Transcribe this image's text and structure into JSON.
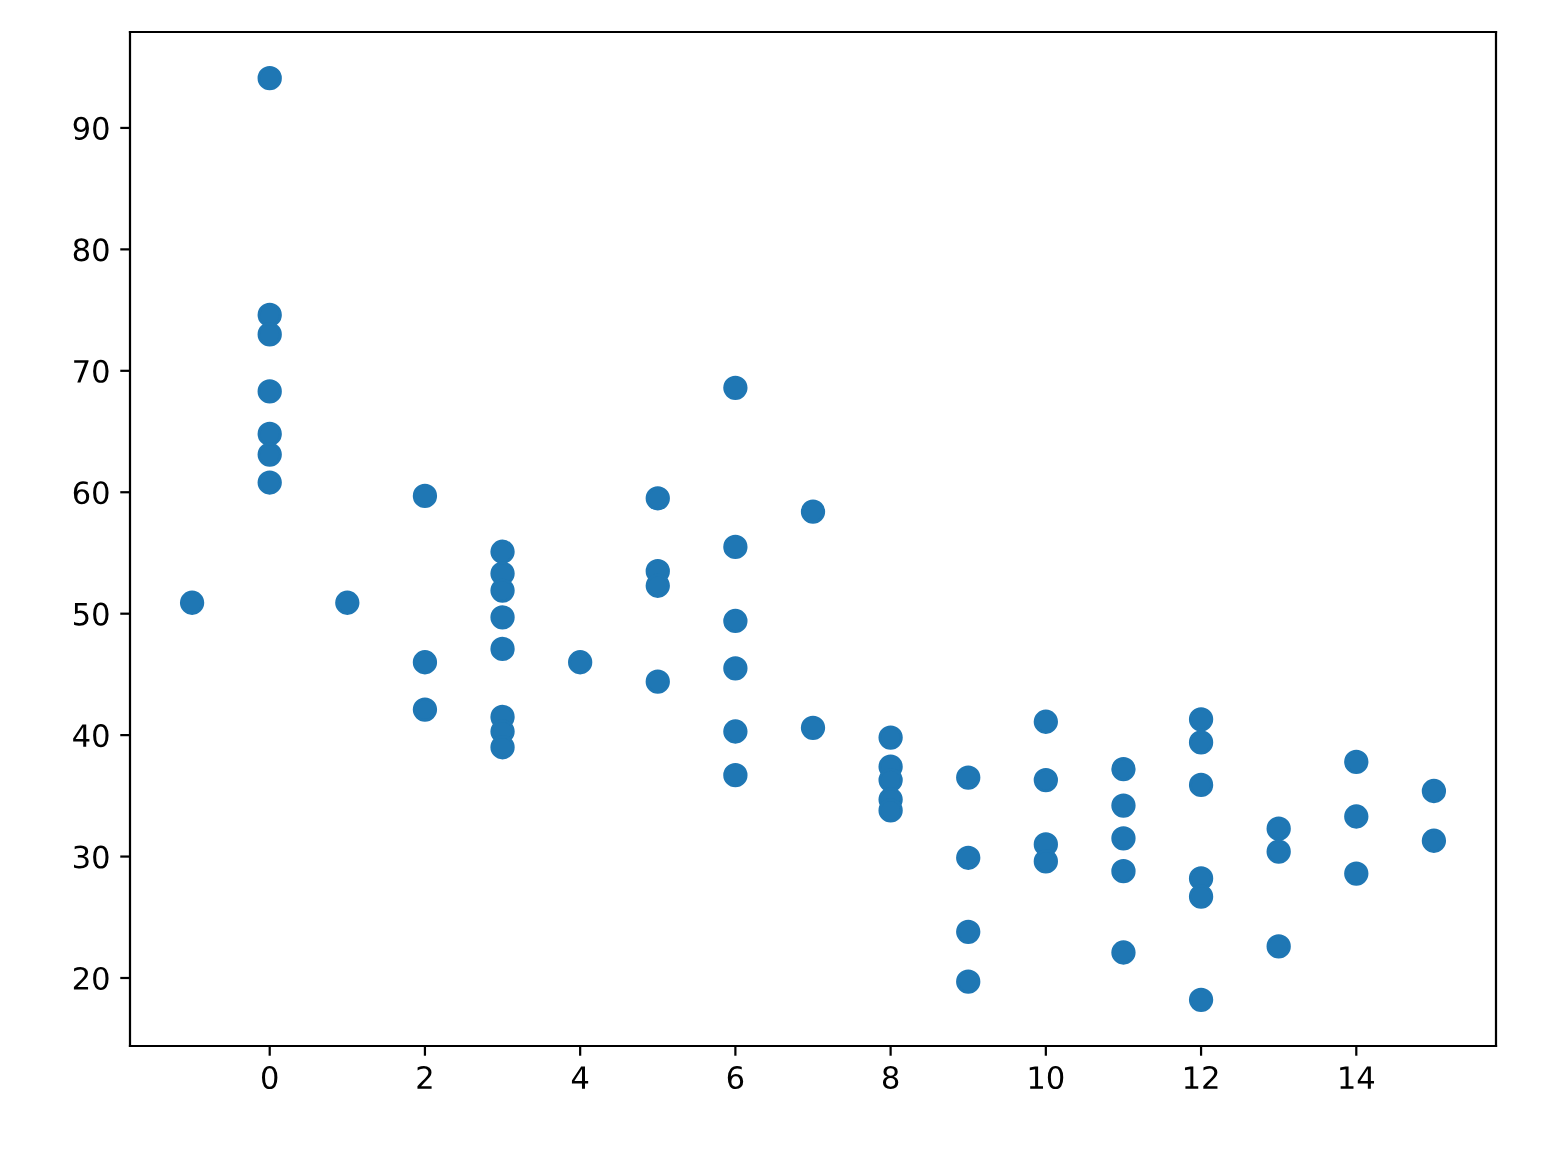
{
  "chart_data": {
    "type": "scatter",
    "marker": "circle",
    "color": "#1f77b4",
    "grid": false,
    "x": [
      -1,
      0,
      0,
      0,
      0,
      0,
      0,
      0,
      1,
      2,
      2,
      2,
      3,
      3,
      3,
      3,
      3,
      3,
      3,
      3,
      4,
      5,
      5,
      5,
      5,
      6,
      6,
      6,
      6,
      6,
      6,
      7,
      7,
      8,
      8,
      8,
      8,
      8,
      9,
      9,
      9,
      9,
      10,
      10,
      10,
      10,
      11,
      11,
      11,
      11,
      11,
      12,
      12,
      12,
      12,
      12,
      12,
      13,
      13,
      13,
      14,
      14,
      14,
      15,
      15
    ],
    "values": [
      50.9,
      94.1,
      74.6,
      73.0,
      68.3,
      64.8,
      63.1,
      60.8,
      50.9,
      59.7,
      46.0,
      42.1,
      55.1,
      53.3,
      51.9,
      49.7,
      47.1,
      41.5,
      40.3,
      39.0,
      46.0,
      59.5,
      53.5,
      52.3,
      44.4,
      68.6,
      55.5,
      49.4,
      45.5,
      40.3,
      36.7,
      58.4,
      40.6,
      39.8,
      37.4,
      36.3,
      34.7,
      33.8,
      36.5,
      29.9,
      23.8,
      19.7,
      41.1,
      36.3,
      31.0,
      29.6,
      37.2,
      34.2,
      31.5,
      28.8,
      22.1,
      41.3,
      39.4,
      35.9,
      28.2,
      26.7,
      18.2,
      32.3,
      30.4,
      22.6,
      37.8,
      33.3,
      28.6,
      35.4,
      31.3
    ],
    "xlim": [
      -1.8,
      15.8
    ],
    "ylim": [
      14.4,
      97.9
    ],
    "xticks": [
      0,
      2,
      4,
      6,
      8,
      10,
      12,
      14
    ],
    "yticks": [
      20,
      30,
      40,
      50,
      60,
      70,
      80,
      90
    ]
  }
}
